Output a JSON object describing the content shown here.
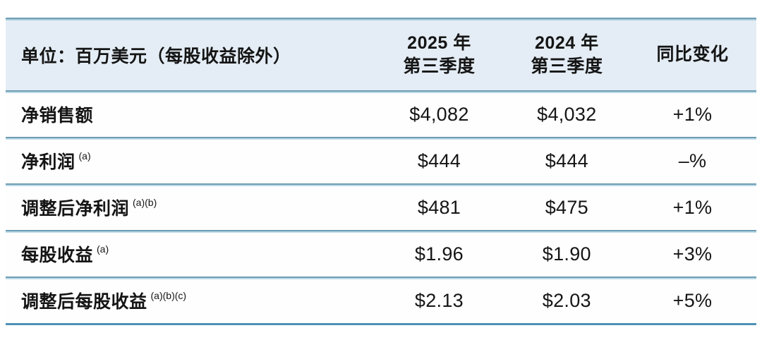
{
  "chart_data": {
    "type": "table",
    "title": "",
    "unit_note": "单位：百万美元（每股收益除外）",
    "columns": [
      "单位：百万美元（每股收益除外）",
      "2025 年 第三季度",
      "2024 年 第三季度",
      "同比变化"
    ],
    "header": {
      "label": "单位：百万美元（每股收益除外）",
      "y2025_line1": "2025 年",
      "y2025_line2": "第三季度",
      "y2024_line1": "2024 年",
      "y2024_line2": "第三季度",
      "change": "同比变化"
    },
    "rows": [
      {
        "label": "净销售额",
        "footnote": "",
        "q3_2025": "$4,082",
        "q3_2024": "$4,032",
        "yoy_change": "+1%"
      },
      {
        "label": "净利润",
        "footnote": "(a)",
        "q3_2025": "$444",
        "q3_2024": "$444",
        "yoy_change": "–%"
      },
      {
        "label": "调整后净利润",
        "footnote": "(a)(b)",
        "q3_2025": "$481",
        "q3_2024": "$475",
        "yoy_change": "+1%"
      },
      {
        "label": "每股收益",
        "footnote": "(a)",
        "q3_2025": "$1.96",
        "q3_2024": "$1.90",
        "yoy_change": "+3%"
      },
      {
        "label": "调整后每股收益",
        "footnote": "(a)(b)(c)",
        "q3_2025": "$2.13",
        "q3_2024": "$2.03",
        "yoy_change": "+5%"
      }
    ]
  },
  "colors": {
    "header_bg": "#e4edf5",
    "divider_dark": "#6d9db4",
    "divider_light": "#bddbe7",
    "bottom_border": "#4f91b6",
    "text": "#151515",
    "page_bg": "#ffffff"
  }
}
